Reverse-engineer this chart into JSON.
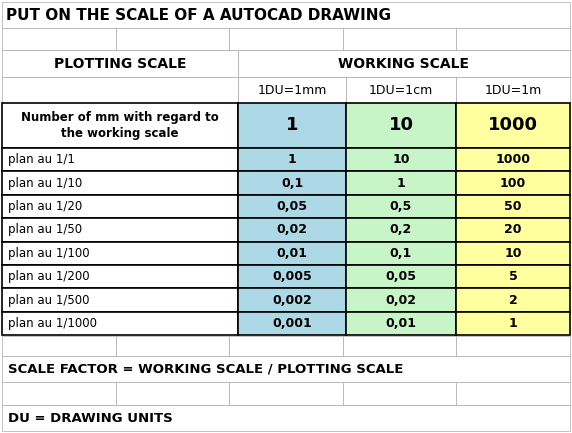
{
  "title": "PUT ON THE SCALE OF A AUTOCAD DRAWING",
  "plotting_scale_label": "PLOTTING SCALE",
  "working_scale_label": "WORKING SCALE",
  "col_headers": [
    "1DU=1mm",
    "1DU=1cm",
    "1DU=1m"
  ],
  "header_row_label": "Number of mm with regard to\nthe working scale",
  "header_values": [
    "1",
    "10",
    "1000"
  ],
  "rows": [
    [
      "plan au 1/1",
      "1",
      "10",
      "1000"
    ],
    [
      "plan au 1/10",
      "0,1",
      "1",
      "100"
    ],
    [
      "plan au 1/20",
      "0,05",
      "0,5",
      "50"
    ],
    [
      "plan au 1/50",
      "0,02",
      "0,2",
      "20"
    ],
    [
      "plan au 1/100",
      "0,01",
      "0,1",
      "10"
    ],
    [
      "plan au 1/200",
      "0,005",
      "0,05",
      "5"
    ],
    [
      "plan au 1/500",
      "0,002",
      "0,02",
      "2"
    ],
    [
      "plan au 1/1000",
      "0,001",
      "0,01",
      "1"
    ]
  ],
  "footer1": "SCALE FACTOR = WORKING SCALE / PLOTTING SCALE",
  "footer2": "DU = DRAWING UNITS",
  "col1_bg": "#ADD8E6",
  "col2_bg": "#C8F5C8",
  "col3_bg": "#FFFFA0",
  "outer_bg": "#FFFFFF",
  "light_border": "#AAAAAA",
  "dark_border": "#000000"
}
